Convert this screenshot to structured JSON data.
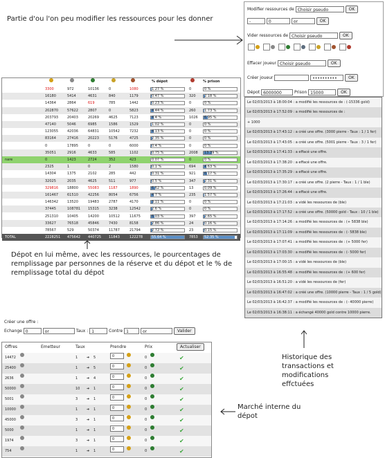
{
  "annotations": {
    "modify": "Partie d'ou l'on peu modifier les ressources pour les donner",
    "depot": "Dépot en lui même, avec les ressources, le pourcentages de remplissage par personnes de la réserve et du dépot et le % de remplissage total du dépot",
    "history": "Historique des transactions et modifications effctuées",
    "market": "Marché interne du dépot"
  },
  "admin": {
    "modify_label": "Modifier ressources de",
    "pseudo_placeholder": "Choisir pseudo",
    "ok": "OK",
    "amount": "0",
    "or": "or",
    "minus": "-",
    "empty_label": "Vider ressources de",
    "erase_label": "Effacer joueur",
    "create_label": "Créer joueur",
    "password": "••••••••••",
    "depot_label": "Dépot",
    "depot_value": "6000000",
    "prison_label": "Prison",
    "prison_value": "15000"
  },
  "colors": {
    "bar": "#5b8fc7",
    "highlight": "#8fd36e",
    "total": "#555555",
    "check": "#3aa63a"
  },
  "depot": {
    "headers": [
      "",
      "",
      "",
      "",
      "",
      "",
      "% dépot",
      "",
      "% prison"
    ],
    "rows": [
      {
        "name": "",
        "v": [
          "3300",
          "972",
          "10136",
          "0",
          "1080"
        ],
        "red": [
          0,
          4
        ],
        "pd": "1.27 %",
        "pdv": 1.27,
        "r": "0",
        "pp": "0 %",
        "ppv": 0
      },
      {
        "name": "",
        "v": [
          "16180",
          "5414",
          "4631",
          "840",
          "1179"
        ],
        "red": [],
        "pd": "0.47 %",
        "pdv": 0.47,
        "r": "320",
        "pp": "2.18 %",
        "ppv": 2.18
      },
      {
        "name": "",
        "v": [
          "14364",
          "2864",
          "619",
          "785",
          "1442"
        ],
        "red": [
          2
        ],
        "pd": "0.23 %",
        "pdv": 0.23,
        "r": "0",
        "pp": "0 %",
        "ppv": 0
      },
      {
        "name": "",
        "v": [
          "202870",
          "57622",
          "2807",
          "0",
          "5823"
        ],
        "red": [],
        "pd": "4.44 %",
        "pdv": 4.44,
        "r": "260",
        "pp": "1.73 %",
        "ppv": 1.73
      },
      {
        "name": "",
        "v": [
          "203793",
          "20403",
          "20269",
          "4625",
          "7123"
        ],
        "red": [],
        "pd": "4.4 %",
        "pdv": 4.4,
        "r": "1026",
        "pp": "6.95 %",
        "ppv": 6.95
      },
      {
        "name": "",
        "v": [
          "47140",
          "5046",
          "6985",
          "1586",
          "1529"
        ],
        "red": [],
        "pd": "1.02 %",
        "pdv": 1.02,
        "r": "0",
        "pp": "0 %",
        "ppv": 0
      },
      {
        "name": "",
        "v": [
          "123055",
          "42036",
          "64831",
          "10542",
          "7232"
        ],
        "red": [],
        "pd": "4.13 %",
        "pdv": 4.13,
        "r": "0",
        "pp": "0 %",
        "ppv": 0
      },
      {
        "name": "",
        "v": [
          "83164",
          "27416",
          "20223",
          "5176",
          "4725"
        ],
        "red": [],
        "pd": "2.35 %",
        "pdv": 2.35,
        "r": "0",
        "pp": "0 %",
        "ppv": 0
      },
      {
        "name": "",
        "v": [
          "0",
          "17895",
          "0",
          "0",
          "6000"
        ],
        "red": [],
        "pd": "0.4 %",
        "pdv": 0.4,
        "r": "0",
        "pp": "0 %",
        "ppv": 0
      },
      {
        "name": "",
        "v": [
          "35051",
          "2916",
          "4633",
          "585",
          "1102"
        ],
        "red": [],
        "pd": "0.75 %",
        "pdv": 0.75,
        "r": "2008",
        "pp": "13.39 %",
        "ppv": 13.39
      },
      {
        "name": "nare",
        "v": [
          "0",
          "1423",
          "2724",
          "352",
          "423"
        ],
        "red": [],
        "pd": "0.07 %",
        "pdv": 0.07,
        "r": "0",
        "pp": "0 %",
        "ppv": 0,
        "highlight": true
      },
      {
        "name": "",
        "v": [
          "2325",
          "1",
          "0",
          "2",
          "1580"
        ],
        "red": [],
        "pd": "0.1 %",
        "pdv": 0.1,
        "r": "694",
        "pp": "4.63 %",
        "ppv": 4.63
      },
      {
        "name": "",
        "v": [
          "14304",
          "1375",
          "2102",
          "285",
          "442"
        ],
        "red": [],
        "pd": "0.31 %",
        "pdv": 0.31,
        "r": "921",
        "pp": "6.17 %",
        "ppv": 6.17
      },
      {
        "name": "",
        "v": [
          "32025",
          "2035",
          "4625",
          "511",
          "977"
        ],
        "red": [],
        "pd": "0.5 %",
        "pdv": 0.5,
        "r": "347",
        "pp": "2.31 %",
        "ppv": 2.31
      },
      {
        "name": "",
        "v": [
          "329816",
          "18800",
          "55083",
          "1187",
          "1890"
        ],
        "red": [
          0,
          2,
          3,
          4
        ],
        "pd": "6.62 %",
        "pdv": 6.62,
        "r": "13",
        "pp": "0.09 %",
        "ppv": 0.09
      },
      {
        "name": "",
        "v": [
          "161467",
          "61510",
          "42256",
          "8054",
          "6756"
        ],
        "red": [],
        "pd": "4.7 %",
        "pdv": 4.7,
        "r": "235",
        "pp": "1.57 %",
        "ppv": 1.57
      },
      {
        "name": "",
        "v": [
          "146342",
          "13520",
          "19483",
          "2787",
          "4170"
        ],
        "red": [],
        "pd": "3.11 %",
        "pdv": 3.11,
        "r": "0",
        "pp": "0 %",
        "ppv": 0
      },
      {
        "name": "",
        "v": [
          "37445",
          "108781",
          "15315",
          "3238",
          "12542"
        ],
        "red": [],
        "pd": "2.6 %",
        "pdv": 2.6,
        "r": "0",
        "pp": "0 %",
        "ppv": 0
      },
      {
        "name": "",
        "v": [
          "251310",
          "10405",
          "14200",
          "10512",
          "11675"
        ],
        "red": [],
        "pd": "6.03 %",
        "pdv": 6.03,
        "r": "397",
        "pp": "2.65 %",
        "ppv": 2.65
      },
      {
        "name": "",
        "v": [
          "33627",
          "76518",
          "45846",
          "7430",
          "8158"
        ],
        "red": [],
        "pd": "2.86 %",
        "pdv": 2.86,
        "r": "24",
        "pp": "0.16 %",
        "ppv": 0.16
      },
      {
        "name": "",
        "v": [
          "78567",
          "529",
          "50374",
          "11787",
          "21794"
        ],
        "red": [],
        "pd": "2.72 %",
        "pdv": 2.72,
        "r": "23",
        "pp": "0.15 %",
        "ppv": 0.15
      }
    ],
    "total": {
      "name": "TOTAL",
      "v": [
        "2228251",
        "475642",
        "440725",
        "11843",
        "122278"
      ],
      "pd": "55.64 %",
      "pdv": 55.64,
      "r": "7853",
      "pp": "52.35 %",
      "ppv": 52.35
    }
  },
  "history": [
    "Le 02/03/2013 à 18:00:04 :  a modifié les ressources de  : (-15336 gold)",
    "Le 02/03/2013 à 17:52:09 :  a modifié les ressources de  :",
    "+ 1000",
    "Le 02/03/2013 à 17:43:12 :  a créé une offre. (3000 pierre - Taux : 1 / 1 fer)",
    "Le 02/03/2013 à 17:43:05 :  a créé une offre. (5001 pierre - Taux : 3 / 1 fer)",
    "Le 02/03/2013 à 17:41:33 :  a effacé une offre.",
    "Le 02/03/2013 à 17:38:20 :  a effacé une offre.",
    "Le 02/03/2013 à 17:35:29 :  a effacé une offre.",
    "Le 02/03/2013 à 17:30:17 :  a créé une offre. (2 pierre - Taux : 1 / 1 ble)",
    "Le 02/03/2013 à 17:26:44 :  a effacé une offre.",
    "Le 02/03/2013 à 17:21:03 :  a vidé les ressources de  (ble)",
    "Le 02/03/2013 à 17:17:52 :  a créé une offre. (50000 gold - Taux : 10 / 1 ble)",
    "Le 02/03/2013 à 17:14:26 :  a modifié les ressources de  : (+ 5838 ble)",
    "Le 02/03/2013 à 17:11:09 :  a modifié les ressources de  : (- 5838 ble)",
    "Le 02/03/2013 à 17:07:41 :  a modifié les ressources de  : (+ 5000 fer)",
    "Le 02/03/2013 à 17:03:30 :  a modifié les ressources de  : (- 5000 fer)",
    "Le 02/03/2013 à 17:00:15 :  a vidé les ressources de  (ble)",
    "Le 02/03/2013 à 16:55:48 :  a modifié les ressources de  : (+ 600 fer)",
    "Le 02/03/2013 à 16:51:20 :  a vidé les ressources de  (fer)",
    "Le 02/03/2013 à 16:47:02 :  a créé une offre. (10000 pierre - Taux : 1 / 5 gold)",
    "Le 02/03/2013 à 16:42:37 :  a modifié les ressources de  : (- 40000 pierre)",
    "Le 02/03/2013 à 16:38:11 :  a échangé 40000 gold contre 10000 pierre."
  ],
  "offer_form": {
    "title": "Créer une offre :",
    "exchange_label": "Echange",
    "amount": "0",
    "res1": "or",
    "rate_label": "Taux :",
    "rate": "1",
    "against_label": "Contre",
    "against": "1",
    "res2": "or",
    "submit": "Valider"
  },
  "market": {
    "headers": [
      "Offres",
      "Emetteur",
      "Taux",
      "Prendre",
      "Prix"
    ],
    "refresh": "Actualiser",
    "rows": [
      {
        "offer": "14472",
        "rate": "1",
        "rate2": "5",
        "take": "0",
        "price": "0"
      },
      {
        "offer": "25400",
        "rate": "1",
        "rate2": "5",
        "take": "0",
        "price": "0"
      },
      {
        "offer": "2636",
        "rate": "1",
        "rate2": "4",
        "take": "0",
        "price": "0"
      },
      {
        "offer": "50000",
        "rate": "10",
        "rate2": "1",
        "take": "0",
        "price": "0"
      },
      {
        "offer": "5001",
        "rate": "3",
        "rate2": "1",
        "take": "0",
        "price": "0"
      },
      {
        "offer": "10000",
        "rate": "1",
        "rate2": "1",
        "take": "0",
        "price": "0"
      },
      {
        "offer": "45000",
        "rate": "3",
        "rate2": "1",
        "take": "0",
        "price": "0"
      },
      {
        "offer": "5000",
        "rate": "1",
        "rate2": "1",
        "take": "0",
        "price": "0"
      },
      {
        "offer": "1974",
        "rate": "3",
        "rate2": "1",
        "take": "0",
        "price": "0"
      },
      {
        "offer": "754",
        "rate": "1",
        "rate2": "1",
        "take": "0",
        "price": "0"
      }
    ]
  }
}
